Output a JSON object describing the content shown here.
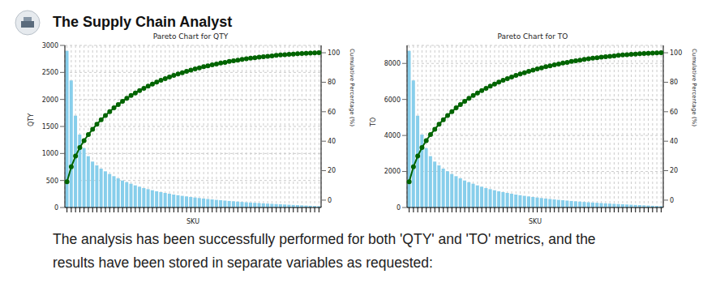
{
  "header": {
    "title": "The Supply Chain Analyst"
  },
  "chart_data": [
    {
      "type": "bar",
      "title": "Pareto Chart for QTY",
      "x_label": "SKU",
      "y_label": "QTY",
      "y2_label": "Cumulative Percentage (%)",
      "categories": [
        null,
        null,
        null,
        null,
        null,
        null,
        null,
        null,
        null,
        null,
        null,
        null,
        null,
        null,
        null,
        null,
        null,
        null,
        null,
        null,
        null,
        null,
        null,
        null,
        null,
        null,
        null,
        null,
        null,
        null,
        null,
        null,
        null,
        null,
        null,
        null,
        null,
        null,
        null,
        null,
        null,
        null,
        null,
        null,
        null,
        null,
        null,
        null,
        null,
        null,
        null,
        null,
        null,
        null,
        null,
        null,
        null,
        null,
        null,
        null
      ],
      "series": [
        {
          "type": "bar",
          "color": "#87ceeb",
          "values": [
            2900,
            2350,
            1700,
            1350,
            1100,
            950,
            850,
            780,
            720,
            670,
            620,
            580,
            540,
            500,
            470,
            440,
            410,
            385,
            360,
            340,
            320,
            300,
            285,
            270,
            255,
            240,
            228,
            216,
            205,
            195,
            185,
            175,
            166,
            158,
            150,
            142,
            135,
            128,
            121,
            115,
            109,
            103,
            97,
            92,
            87,
            82,
            77,
            72,
            68,
            64,
            60,
            56,
            52,
            48,
            44,
            40,
            36,
            32,
            28,
            24
          ]
        },
        {
          "type": "line",
          "axis": "y2",
          "color": "#006400",
          "marker": "circle",
          "values": [
            12.5,
            22.6,
            29.9,
            35.7,
            40.4,
            44.5,
            48.1,
            51.5,
            54.6,
            57.4,
            60.1,
            62.6,
            64.9,
            67.1,
            69.1,
            71.0,
            72.7,
            74.4,
            75.9,
            77.4,
            78.8,
            80.1,
            81.3,
            82.5,
            83.5,
            84.6,
            85.6,
            86.5,
            87.4,
            88.2,
            89.0,
            89.8,
            90.5,
            91.1,
            91.8,
            92.4,
            93.0,
            93.5,
            94.1,
            94.5,
            95.0,
            95.5,
            95.9,
            96.3,
            96.6,
            97.0,
            97.3,
            97.6,
            97.9,
            98.2,
            98.5,
            98.7,
            98.9,
            99.1,
            99.3,
            99.5,
            99.6,
            99.8,
            99.9,
            100
          ]
        }
      ],
      "ylim": [
        0,
        3000
      ],
      "yticks": [
        0,
        500,
        1000,
        1500,
        2000,
        2500,
        3000
      ],
      "y2lim": [
        -5,
        105
      ],
      "y2ticks": [
        0,
        20,
        40,
        60,
        80,
        100
      ],
      "grid": true
    },
    {
      "type": "bar",
      "title": "Pareto Chart for TO",
      "x_label": "SKU",
      "y_label": "TO",
      "y2_label": "Cumulative Percentage (%)",
      "categories": [
        null,
        null,
        null,
        null,
        null,
        null,
        null,
        null,
        null,
        null,
        null,
        null,
        null,
        null,
        null,
        null,
        null,
        null,
        null,
        null,
        null,
        null,
        null,
        null,
        null,
        null,
        null,
        null,
        null,
        null,
        null,
        null,
        null,
        null,
        null,
        null,
        null,
        null,
        null,
        null,
        null,
        null,
        null,
        null,
        null,
        null,
        null,
        null,
        null,
        null,
        null,
        null,
        null,
        null,
        null,
        null,
        null,
        null,
        null,
        null
      ],
      "series": [
        {
          "type": "bar",
          "color": "#87ceeb",
          "values": [
            8700,
            7050,
            5100,
            4050,
            3300,
            2850,
            2550,
            2340,
            2160,
            2010,
            1860,
            1740,
            1620,
            1500,
            1410,
            1320,
            1230,
            1155,
            1080,
            1020,
            960,
            900,
            855,
            810,
            765,
            720,
            684,
            648,
            615,
            585,
            555,
            525,
            498,
            474,
            450,
            426,
            405,
            384,
            363,
            345,
            327,
            309,
            291,
            276,
            261,
            246,
            231,
            216,
            204,
            192,
            180,
            168,
            156,
            144,
            132,
            120,
            108,
            96,
            84,
            72
          ]
        },
        {
          "type": "line",
          "axis": "y2",
          "color": "#006400",
          "marker": "circle",
          "values": [
            12.5,
            22.6,
            29.9,
            35.7,
            40.4,
            44.5,
            48.1,
            51.5,
            54.6,
            57.4,
            60.1,
            62.6,
            64.9,
            67.1,
            69.1,
            71.0,
            72.7,
            74.4,
            75.9,
            77.4,
            78.8,
            80.1,
            81.3,
            82.5,
            83.5,
            84.6,
            85.6,
            86.5,
            87.4,
            88.2,
            89.0,
            89.8,
            90.5,
            91.1,
            91.8,
            92.4,
            93.0,
            93.5,
            94.1,
            94.5,
            95.0,
            95.5,
            95.9,
            96.3,
            96.6,
            97.0,
            97.3,
            97.6,
            97.9,
            98.2,
            98.5,
            98.7,
            98.9,
            99.1,
            99.3,
            99.5,
            99.6,
            99.8,
            99.9,
            100
          ]
        }
      ],
      "ylim": [
        0,
        9000
      ],
      "yticks": [
        0,
        2000,
        4000,
        6000,
        8000
      ],
      "y2lim": [
        -5,
        105
      ],
      "y2ticks": [
        0,
        20,
        40,
        60,
        80,
        100
      ],
      "grid": true
    }
  ],
  "text": {
    "lines": [
      "The analysis has been successfully performed for both 'QTY' and 'TO' metrics, and the",
      "results have been stored in separate variables as requested:"
    ]
  }
}
